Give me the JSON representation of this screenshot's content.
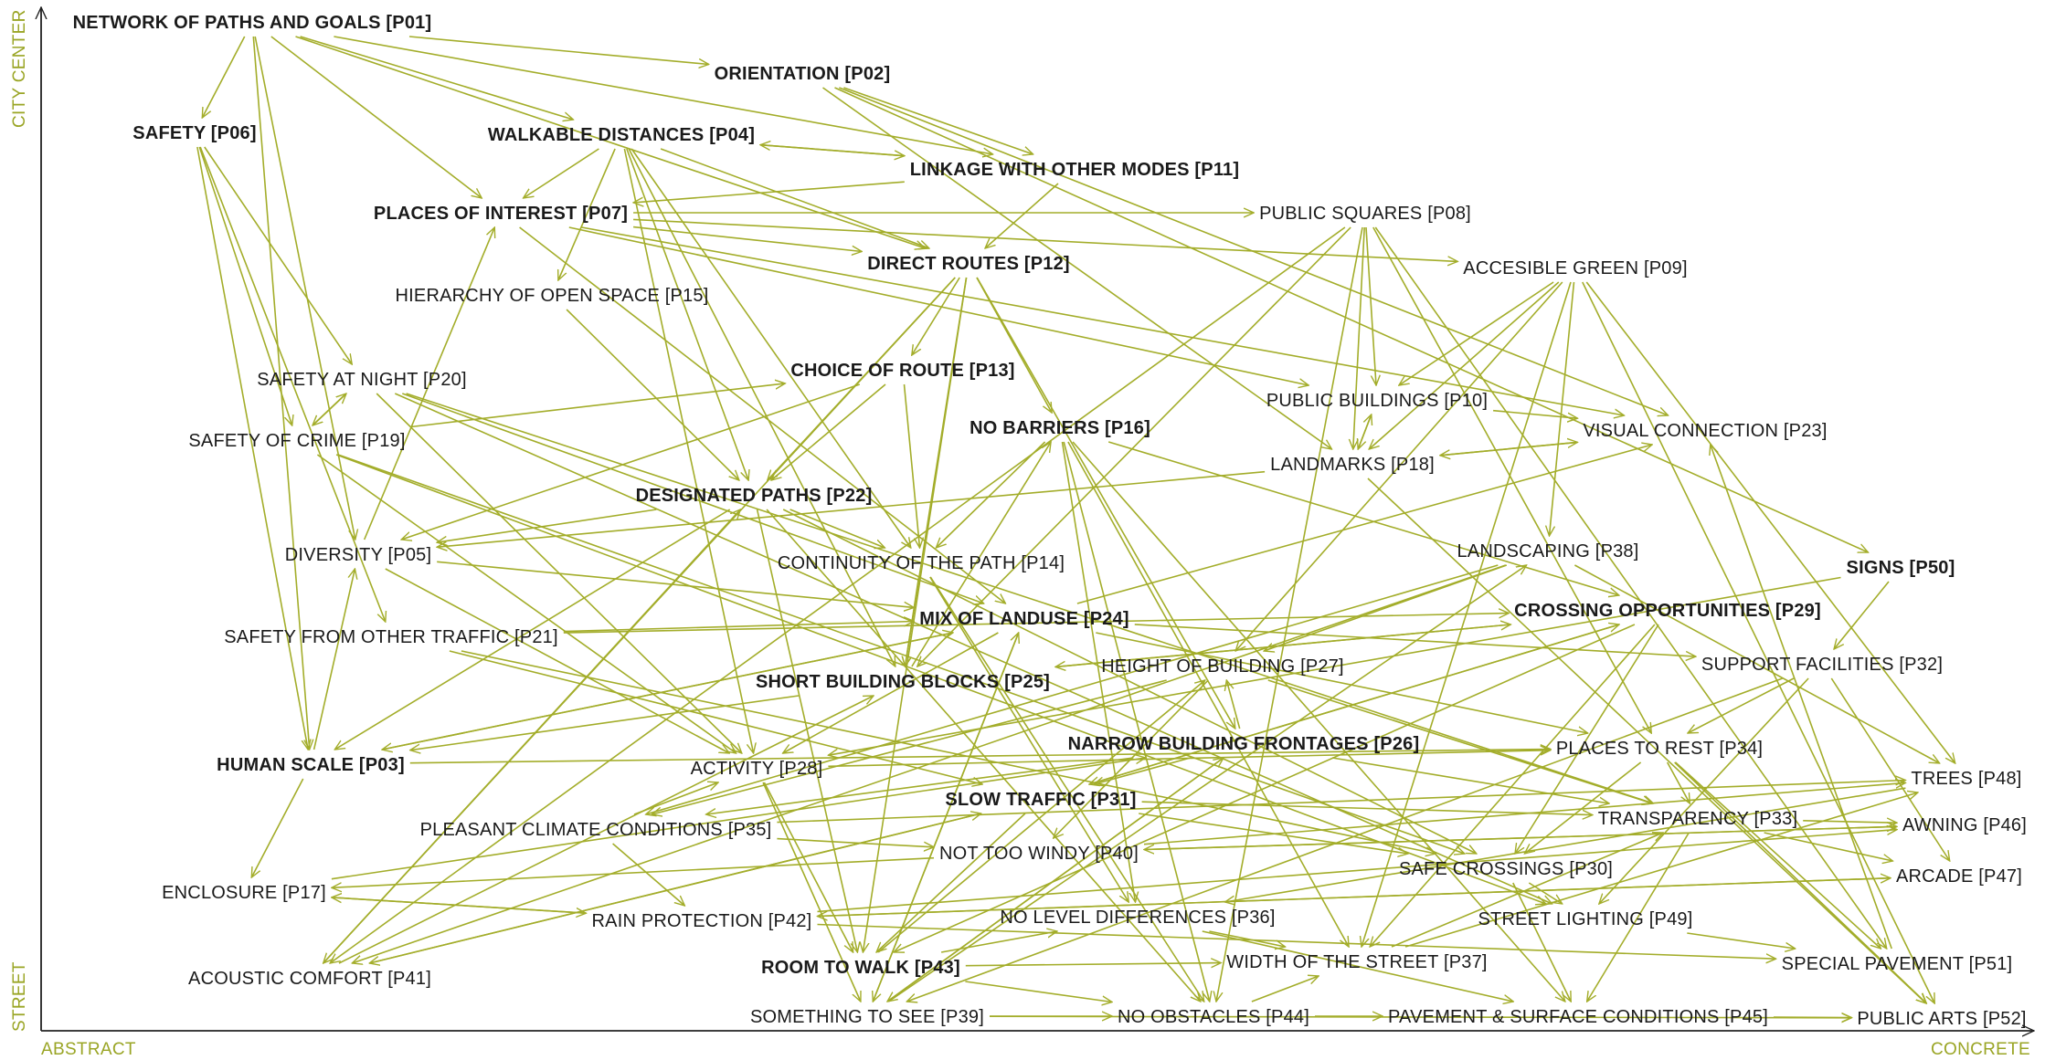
{
  "colors": {
    "line": "#a3ad2a",
    "text": "#1a1a1a",
    "axis_label": "#9aa525"
  },
  "axes": {
    "y_top": "CITY CENTER",
    "y_bottom": "STREET",
    "x_left": "ABSTRACT",
    "x_right": "CONCRETE"
  },
  "nodes": [
    {
      "id": "P01",
      "text": "NETWORK OF PATHS AND GOALS [P01]",
      "bold": true
    },
    {
      "id": "P02",
      "text": "ORIENTATION [P02]",
      "bold": true
    },
    {
      "id": "P03",
      "text": "HUMAN SCALE [P03]",
      "bold": true
    },
    {
      "id": "P04",
      "text": "WALKABLE DISTANCES [P04]",
      "bold": true
    },
    {
      "id": "P05",
      "text": "DIVERSITY [P05]",
      "bold": false
    },
    {
      "id": "P06",
      "text": "SAFETY [P06]",
      "bold": true
    },
    {
      "id": "P07",
      "text": "PLACES OF INTEREST [P07]",
      "bold": true
    },
    {
      "id": "P08",
      "text": "PUBLIC SQUARES [P08]",
      "bold": false
    },
    {
      "id": "P09",
      "text": "ACCESIBLE GREEN [P09]",
      "bold": false
    },
    {
      "id": "P10",
      "text": "PUBLIC BUILDINGS [P10]",
      "bold": false
    },
    {
      "id": "P11",
      "text": "LINKAGE WITH OTHER MODES [P11]",
      "bold": true
    },
    {
      "id": "P12",
      "text": "DIRECT ROUTES [P12]",
      "bold": true
    },
    {
      "id": "P13",
      "text": "CHOICE OF ROUTE [P13]",
      "bold": true
    },
    {
      "id": "P14",
      "text": "CONTINUITY OF THE PATH [P14]",
      "bold": false
    },
    {
      "id": "P15",
      "text": "HIERARCHY OF OPEN SPACE [P15]",
      "bold": false
    },
    {
      "id": "P16",
      "text": "NO BARRIERS [P16]",
      "bold": true
    },
    {
      "id": "P17",
      "text": "ENCLOSURE [P17]",
      "bold": false
    },
    {
      "id": "P18",
      "text": "LANDMARKS [P18]",
      "bold": false
    },
    {
      "id": "P19",
      "text": "SAFETY OF CRIME [P19]",
      "bold": false
    },
    {
      "id": "P20",
      "text": "SAFETY AT NIGHT [P20]",
      "bold": false
    },
    {
      "id": "P21",
      "text": "SAFETY FROM OTHER TRAFFIC [P21]",
      "bold": false
    },
    {
      "id": "P22",
      "text": "DESIGNATED PATHS [P22]",
      "bold": true
    },
    {
      "id": "P23",
      "text": "VISUAL CONNECTION [P23]",
      "bold": false
    },
    {
      "id": "P24",
      "text": "MIX OF LANDUSE [P24]",
      "bold": true
    },
    {
      "id": "P25",
      "text": "SHORT BUILDING BLOCKS [P25]",
      "bold": true
    },
    {
      "id": "P26",
      "text": "NARROW BUILDING FRONTAGES [P26]",
      "bold": true
    },
    {
      "id": "P27",
      "text": "HEIGHT OF BUILDING [P27]",
      "bold": false
    },
    {
      "id": "P28",
      "text": "ACTIVITY [P28]",
      "bold": false
    },
    {
      "id": "P29",
      "text": "CROSSING OPPORTUNITIES [P29]",
      "bold": true
    },
    {
      "id": "P30",
      "text": "SAFE CROSSINGS [P30]",
      "bold": false
    },
    {
      "id": "P31",
      "text": "SLOW TRAFFIC [P31]",
      "bold": true
    },
    {
      "id": "P32",
      "text": "SUPPORT FACILITIES [P32]",
      "bold": false
    },
    {
      "id": "P33",
      "text": "TRANSPARENCY [P33]",
      "bold": false
    },
    {
      "id": "P34",
      "text": "PLACES TO REST [P34]",
      "bold": false
    },
    {
      "id": "P35",
      "text": "PLEASANT CLIMATE CONDITIONS [P35]",
      "bold": false
    },
    {
      "id": "P36",
      "text": "NO LEVEL DIFFERENCES [P36]",
      "bold": false
    },
    {
      "id": "P37",
      "text": "WIDTH OF THE STREET [P37]",
      "bold": false
    },
    {
      "id": "P38",
      "text": "LANDSCAPING [P38]",
      "bold": false
    },
    {
      "id": "P39",
      "text": "SOMETHING TO SEE [P39]",
      "bold": false
    },
    {
      "id": "P40",
      "text": "NOT TOO WINDY [P40]",
      "bold": false
    },
    {
      "id": "P41",
      "text": "ACOUSTIC COMFORT [P41]",
      "bold": false
    },
    {
      "id": "P42",
      "text": "RAIN PROTECTION [P42]",
      "bold": false
    },
    {
      "id": "P43",
      "text": "ROOM TO WALK [P43]",
      "bold": true
    },
    {
      "id": "P44",
      "text": "NO OBSTACLES [P44]",
      "bold": false
    },
    {
      "id": "P45",
      "text": "PAVEMENT & SURFACE CONDITIONS [P45]",
      "bold": false
    },
    {
      "id": "P46",
      "text": "AWNING [P46]",
      "bold": false
    },
    {
      "id": "P47",
      "text": "ARCADE [P47]",
      "bold": false
    },
    {
      "id": "P48",
      "text": "TREES [P48]",
      "bold": false
    },
    {
      "id": "P49",
      "text": "STREET LIGHTING [P49]",
      "bold": false
    },
    {
      "id": "P50",
      "text": "SIGNS [P50]",
      "bold": true
    },
    {
      "id": "P51",
      "text": "SPECIAL PAVEMENT [P51]",
      "bold": false
    },
    {
      "id": "P52",
      "text": "PUBLIC ARTS [P52]",
      "bold": false
    }
  ],
  "edges": [
    [
      "P01",
      "P06"
    ],
    [
      "P01",
      "P02"
    ],
    [
      "P01",
      "P04"
    ],
    [
      "P01",
      "P07"
    ],
    [
      "P01",
      "P03"
    ],
    [
      "P01",
      "P05"
    ],
    [
      "P01",
      "P11"
    ],
    [
      "P01",
      "P12"
    ],
    [
      "P06",
      "P20"
    ],
    [
      "P06",
      "P19"
    ],
    [
      "P06",
      "P21"
    ],
    [
      "P06",
      "P03"
    ],
    [
      "P02",
      "P23"
    ],
    [
      "P02",
      "P18"
    ],
    [
      "P02",
      "P50"
    ],
    [
      "P02",
      "P11"
    ],
    [
      "P04",
      "P11"
    ],
    [
      "P04",
      "P12"
    ],
    [
      "P04",
      "P15"
    ],
    [
      "P04",
      "P25"
    ],
    [
      "P04",
      "P14"
    ],
    [
      "P04",
      "P22"
    ],
    [
      "P04",
      "P28"
    ],
    [
      "P04",
      "P07"
    ],
    [
      "P11",
      "P04"
    ],
    [
      "P11",
      "P12"
    ],
    [
      "P11",
      "P07"
    ],
    [
      "P07",
      "P08"
    ],
    [
      "P07",
      "P09"
    ],
    [
      "P07",
      "P12"
    ],
    [
      "P07",
      "P10"
    ],
    [
      "P07",
      "P23"
    ],
    [
      "P07",
      "P24"
    ],
    [
      "P15",
      "P22"
    ],
    [
      "P12",
      "P13"
    ],
    [
      "P12",
      "P16"
    ],
    [
      "P12",
      "P26"
    ],
    [
      "P12",
      "P25"
    ],
    [
      "P12",
      "P43"
    ],
    [
      "P12",
      "P22"
    ],
    [
      "P08",
      "P18"
    ],
    [
      "P08",
      "P10"
    ],
    [
      "P08",
      "P25"
    ],
    [
      "P08",
      "P41"
    ],
    [
      "P08",
      "P34"
    ],
    [
      "P08",
      "P44"
    ],
    [
      "P08",
      "P51"
    ],
    [
      "P09",
      "P10"
    ],
    [
      "P09",
      "P18"
    ],
    [
      "P09",
      "P38"
    ],
    [
      "P09",
      "P48"
    ],
    [
      "P09",
      "P52"
    ],
    [
      "P09",
      "P37"
    ],
    [
      "P09",
      "P27"
    ],
    [
      "P20",
      "P19"
    ],
    [
      "P19",
      "P20"
    ],
    [
      "P20",
      "P49"
    ],
    [
      "P20",
      "P28"
    ],
    [
      "P20",
      "P33"
    ],
    [
      "P20",
      "P24"
    ],
    [
      "P19",
      "P13"
    ],
    [
      "P19",
      "P28"
    ],
    [
      "P19",
      "P30"
    ],
    [
      "P19",
      "P49"
    ],
    [
      "P13",
      "P14"
    ],
    [
      "P13",
      "P22"
    ],
    [
      "P16",
      "P14"
    ],
    [
      "P16",
      "P29"
    ],
    [
      "P16",
      "P36"
    ],
    [
      "P16",
      "P44"
    ],
    [
      "P16",
      "P37"
    ],
    [
      "P16",
      "P45"
    ],
    [
      "P10",
      "P18"
    ],
    [
      "P18",
      "P10"
    ],
    [
      "P10",
      "P23"
    ],
    [
      "P18",
      "P23"
    ],
    [
      "P23",
      "P18"
    ],
    [
      "P18",
      "P05"
    ],
    [
      "P18",
      "P52"
    ],
    [
      "P22",
      "P43"
    ],
    [
      "P22",
      "P30"
    ],
    [
      "P22",
      "P44"
    ],
    [
      "P22",
      "P03"
    ],
    [
      "P22",
      "P14"
    ],
    [
      "P05",
      "P07"
    ],
    [
      "P05",
      "P24"
    ],
    [
      "P05",
      "P28"
    ],
    [
      "P14",
      "P44"
    ],
    [
      "P14",
      "P36"
    ],
    [
      "P14",
      "P25"
    ],
    [
      "P38",
      "P48"
    ],
    [
      "P38",
      "P41"
    ],
    [
      "P38",
      "P35"
    ],
    [
      "P38",
      "P27"
    ],
    [
      "P24",
      "P03"
    ],
    [
      "P24",
      "P28"
    ],
    [
      "P24",
      "P39"
    ],
    [
      "P24",
      "P32"
    ],
    [
      "P24",
      "P34"
    ],
    [
      "P21",
      "P31"
    ],
    [
      "P21",
      "P30"
    ],
    [
      "P21",
      "P29"
    ],
    [
      "P21",
      "P24"
    ],
    [
      "P29",
      "P31"
    ],
    [
      "P29",
      "P25"
    ],
    [
      "P29",
      "P43"
    ],
    [
      "P29",
      "P37"
    ],
    [
      "P29",
      "P30"
    ],
    [
      "P50",
      "P28"
    ],
    [
      "P50",
      "P32"
    ],
    [
      "P25",
      "P03"
    ],
    [
      "P25",
      "P29"
    ],
    [
      "P25",
      "P16"
    ],
    [
      "P27",
      "P40"
    ],
    [
      "P27",
      "P35"
    ],
    [
      "P27",
      "P33"
    ],
    [
      "P32",
      "P34"
    ],
    [
      "P32",
      "P49"
    ],
    [
      "P32",
      "P47"
    ],
    [
      "P32",
      "P39"
    ],
    [
      "P03",
      "P17"
    ],
    [
      "P03",
      "P05"
    ],
    [
      "P03",
      "P34"
    ],
    [
      "P03",
      "P24"
    ],
    [
      "P28",
      "P34"
    ],
    [
      "P28",
      "P43"
    ],
    [
      "P28",
      "P39"
    ],
    [
      "P26",
      "P33"
    ],
    [
      "P26",
      "P31"
    ],
    [
      "P26",
      "P39"
    ],
    [
      "P26",
      "P27"
    ],
    [
      "P31",
      "P41"
    ],
    [
      "P31",
      "P30"
    ],
    [
      "P31",
      "P33"
    ],
    [
      "P31",
      "P29"
    ],
    [
      "P31",
      "P43"
    ],
    [
      "P35",
      "P28"
    ],
    [
      "P35",
      "P40"
    ],
    [
      "P35",
      "P42"
    ],
    [
      "P35",
      "P48"
    ],
    [
      "P40",
      "P48"
    ],
    [
      "P40",
      "P46"
    ],
    [
      "P40",
      "P17"
    ],
    [
      "P42",
      "P46"
    ],
    [
      "P42",
      "P47"
    ],
    [
      "P42",
      "P17"
    ],
    [
      "P42",
      "P51"
    ],
    [
      "P17",
      "P42"
    ],
    [
      "P17",
      "P26"
    ],
    [
      "P41",
      "P22"
    ],
    [
      "P41",
      "P31"
    ],
    [
      "P41",
      "P25"
    ],
    [
      "P34",
      "P51"
    ],
    [
      "P34",
      "P52"
    ],
    [
      "P34",
      "P33"
    ],
    [
      "P33",
      "P47"
    ],
    [
      "P33",
      "P46"
    ],
    [
      "P33",
      "P45"
    ],
    [
      "P43",
      "P37"
    ],
    [
      "P43",
      "P44"
    ],
    [
      "P43",
      "P36"
    ],
    [
      "P43",
      "P27"
    ],
    [
      "P39",
      "P52"
    ],
    [
      "P39",
      "P44"
    ],
    [
      "P39",
      "P38"
    ],
    [
      "P39",
      "P24"
    ],
    [
      "P39",
      "P26"
    ],
    [
      "P44",
      "P37"
    ],
    [
      "P44",
      "P45"
    ],
    [
      "P45",
      "P52"
    ],
    [
      "P37",
      "P33"
    ],
    [
      "P37",
      "P48"
    ],
    [
      "P36",
      "P45"
    ],
    [
      "P36",
      "P37"
    ],
    [
      "P30",
      "P49"
    ],
    [
      "P30",
      "P45"
    ],
    [
      "P49",
      "P51"
    ],
    [
      "P51",
      "P23"
    ],
    [
      "P48",
      "P36"
    ],
    [
      "P46",
      "P40"
    ],
    [
      "P47",
      "P42"
    ],
    [
      "P34",
      "P30"
    ],
    [
      "P12",
      "P41"
    ],
    [
      "P13",
      "P05"
    ],
    [
      "P24",
      "P23"
    ],
    [
      "P26",
      "P35"
    ],
    [
      "P22",
      "P05"
    ]
  ]
}
